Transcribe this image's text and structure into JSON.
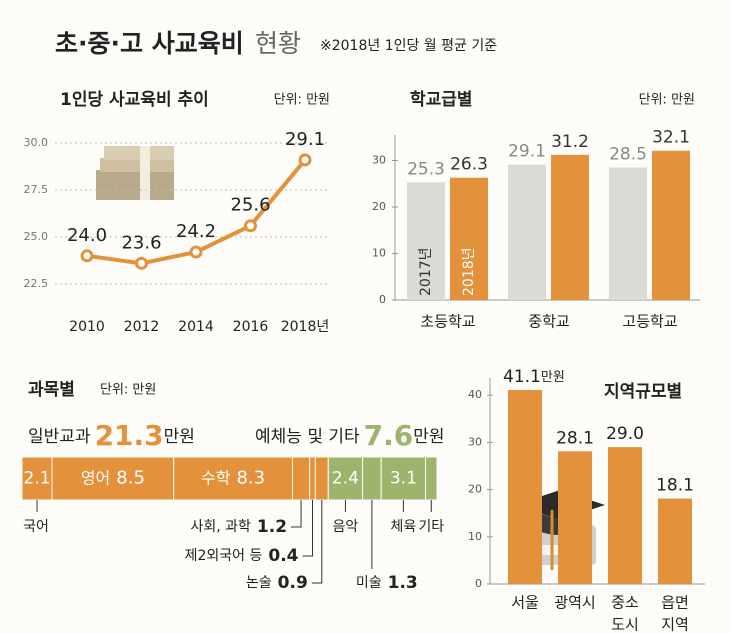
{
  "header": {
    "title": "초·중·고 사교육비",
    "title_suffix": "현황",
    "note": "※2018년 1인당 월 평균 기준"
  },
  "chart_data": [
    {
      "type": "line",
      "title": "1인당 사교육비 추이",
      "unit": "단위: 만원",
      "categories": [
        "2010",
        "2012",
        "2014",
        "2016",
        "2018년"
      ],
      "values": [
        24.0,
        23.6,
        24.2,
        25.6,
        29.1
      ],
      "value_labels": [
        "24.0",
        "23.6",
        "24.2",
        "25.6",
        "29.1"
      ],
      "color": "#e3913a",
      "ylim": [
        21,
        31
      ],
      "yticks": [
        22.5,
        {
          "value": 25,
          "label": "25.0"
        },
        27.5,
        {
          "value": 30,
          "label": "30.0"
        }
      ],
      "grid": true
    },
    {
      "type": "grouped-bar",
      "title": "학교급별",
      "unit": "단위: 만원",
      "categories": [
        "초등학교",
        "중학교",
        "고등학교"
      ],
      "series": [
        {
          "name": "2017년",
          "color": "#dcdad4",
          "values": [
            25.3,
            29.1,
            28.5
          ]
        },
        {
          "name": "2018년",
          "color": "#e3913a",
          "values": [
            26.3,
            31.2,
            32.1
          ]
        }
      ],
      "ylim": [
        0,
        35
      ],
      "yticks": [
        0,
        10,
        20,
        30
      ]
    },
    {
      "type": "stacked-hbar",
      "title": "과목별",
      "unit": "단위: 만원",
      "groups": [
        {
          "name": "일반교과",
          "total": 21.3,
          "unit": "만원",
          "color": "#e3913a",
          "segments": [
            {
              "name": "국어",
              "value": 2.1
            },
            {
              "name": "영어",
              "value": 8.5
            },
            {
              "name": "수학",
              "value": 8.3
            },
            {
              "name": "사회, 과학",
              "value": 1.2
            },
            {
              "name": "제2외국어 등",
              "value": 0.4
            },
            {
              "name": "논술",
              "value": 0.9
            }
          ]
        },
        {
          "name": "예체능 및 기타",
          "total": 7.6,
          "unit": "만원",
          "color": "#9db46c",
          "segments": [
            {
              "name": "음악",
              "value": 2.4
            },
            {
              "name": "미술",
              "value": 1.3
            },
            {
              "name": "체육",
              "value": 3.1
            },
            {
              "name": "기타",
              "value": 0.8
            }
          ]
        }
      ]
    },
    {
      "type": "bar",
      "title": "지역규모별",
      "categories": [
        [
          "서울"
        ],
        [
          "광역시"
        ],
        [
          "중소",
          "도시"
        ],
        [
          "읍면",
          "지역"
        ]
      ],
      "values": [
        41.1,
        28.1,
        29.0,
        18.1
      ],
      "value_labels": [
        "41.1",
        "28.1",
        "29.0",
        "18.1"
      ],
      "value_unit": "만원",
      "color": "#e3913a",
      "ylim": [
        0,
        45
      ],
      "yticks": [
        0,
        10,
        20,
        30,
        40
      ]
    }
  ]
}
